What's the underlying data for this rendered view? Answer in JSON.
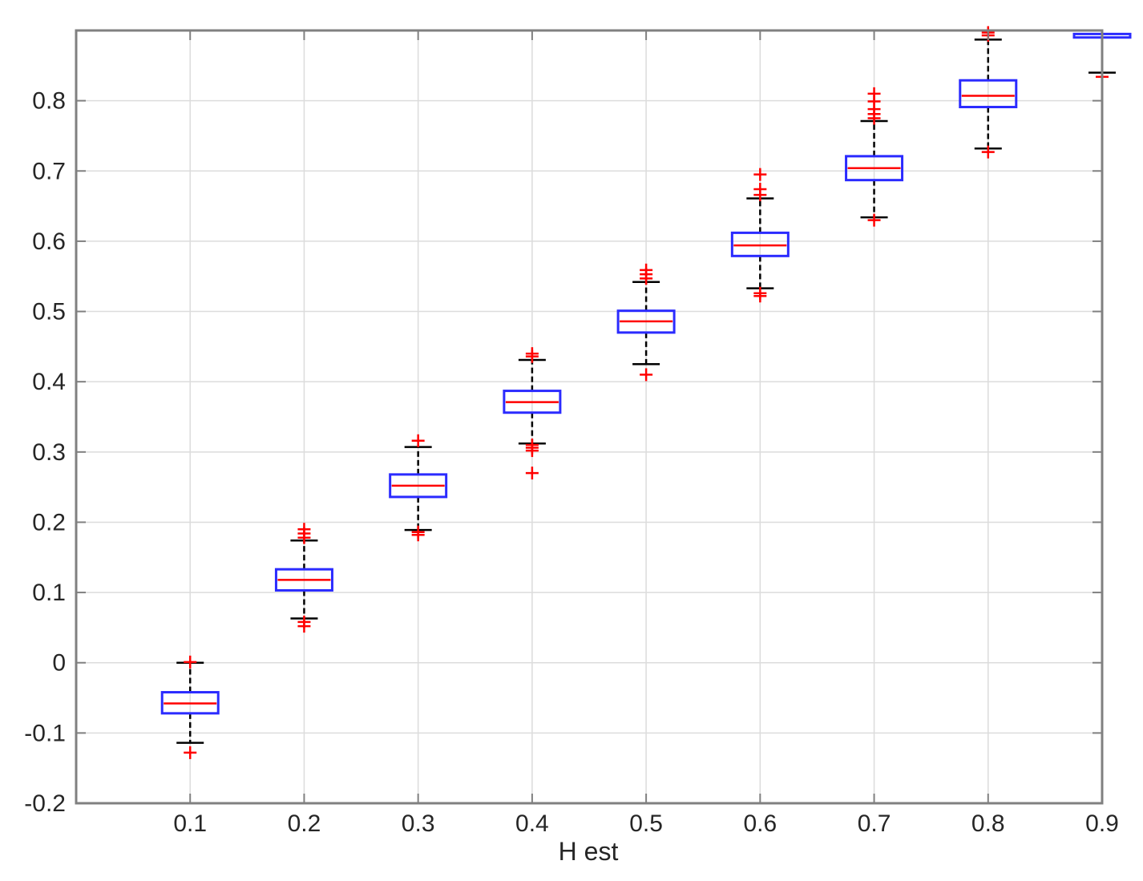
{
  "chart_data": {
    "type": "boxplot",
    "title": "",
    "xlabel": "H est",
    "ylabel": "",
    "categories": [
      "0.1",
      "0.2",
      "0.3",
      "0.4",
      "0.5",
      "0.6",
      "0.7",
      "0.8",
      "0.9"
    ],
    "xlim": [
      0.0,
      0.9
    ],
    "ylim": [
      -0.2,
      0.9
    ],
    "yticks": [
      "-0.2",
      "-0.1",
      "0",
      "0.1",
      "0.2",
      "0.3",
      "0.4",
      "0.5",
      "0.6",
      "0.7",
      "0.8"
    ],
    "grid": true,
    "boxes": [
      {
        "x": 0.1,
        "whisker_low": -0.114,
        "q1": -0.072,
        "median": -0.058,
        "q3": -0.042,
        "whisker_high": 0.0,
        "outliers": [
          -0.128,
          0.001
        ]
      },
      {
        "x": 0.2,
        "whisker_low": 0.063,
        "q1": 0.103,
        "median": 0.118,
        "q3": 0.133,
        "whisker_high": 0.174,
        "outliers": [
          0.052,
          0.058,
          0.178,
          0.184,
          0.19
        ]
      },
      {
        "x": 0.3,
        "whisker_low": 0.189,
        "q1": 0.236,
        "median": 0.252,
        "q3": 0.268,
        "whisker_high": 0.307,
        "outliers": [
          0.182,
          0.186,
          0.316
        ]
      },
      {
        "x": 0.4,
        "whisker_low": 0.312,
        "q1": 0.356,
        "median": 0.371,
        "q3": 0.387,
        "whisker_high": 0.431,
        "outliers": [
          0.27,
          0.302,
          0.306,
          0.31,
          0.436,
          0.44
        ]
      },
      {
        "x": 0.5,
        "whisker_low": 0.425,
        "q1": 0.47,
        "median": 0.486,
        "q3": 0.501,
        "whisker_high": 0.542,
        "outliers": [
          0.41,
          0.547,
          0.553,
          0.559
        ]
      },
      {
        "x": 0.6,
        "whisker_low": 0.533,
        "q1": 0.579,
        "median": 0.594,
        "q3": 0.612,
        "whisker_high": 0.661,
        "outliers": [
          0.522,
          0.526,
          0.666,
          0.674,
          0.695
        ]
      },
      {
        "x": 0.7,
        "whisker_low": 0.634,
        "q1": 0.687,
        "median": 0.704,
        "q3": 0.721,
        "whisker_high": 0.771,
        "outliers": [
          0.63,
          0.775,
          0.781,
          0.788,
          0.799,
          0.81
        ]
      },
      {
        "x": 0.8,
        "whisker_low": 0.732,
        "q1": 0.791,
        "median": 0.807,
        "q3": 0.829,
        "whisker_high": 0.887,
        "outliers": [
          0.727,
          0.893,
          0.897
        ]
      },
      {
        "x": 0.9,
        "whisker_low": 0.84,
        "q1": 0.89,
        "median": null,
        "q3": 0.895,
        "whisker_high": null,
        "outliers": [
          0.834
        ]
      }
    ],
    "colors": {
      "box": "#2b2bff",
      "median": "#ff0000",
      "whisker": "#000000",
      "outlier": "#ff0000",
      "grid": "#dcdcdc",
      "axis": "#808080",
      "text": "#262626"
    }
  }
}
